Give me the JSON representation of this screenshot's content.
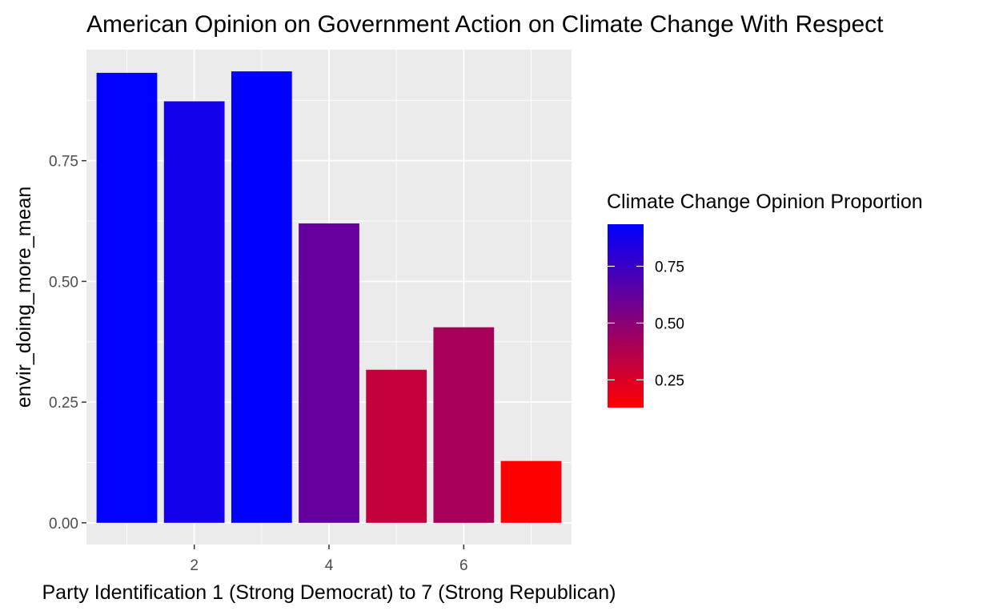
{
  "chart_data": {
    "type": "bar",
    "title": "American Opinion on Government Action on Climate Change With Respect",
    "xlabel": "Party Identification 1 (Strong Democrat) to 7 (Strong Republican)",
    "ylabel": "envir_doing_more_mean",
    "x": [
      1,
      2,
      3,
      4,
      5,
      6,
      7
    ],
    "values": [
      0.932,
      0.873,
      0.935,
      0.62,
      0.317,
      0.405,
      0.128
    ],
    "xlim": [
      0.4,
      7.6
    ],
    "ylim": [
      -0.045,
      0.98
    ],
    "x_ticks": [
      "2",
      "4",
      "6"
    ],
    "y_ticks": [
      "0.00",
      "0.25",
      "0.50",
      "0.75"
    ],
    "grid": true,
    "colors": {
      "low": "#ff0000",
      "high": "#0000ff",
      "panel": "#ebebeb",
      "grid": "#ffffff"
    },
    "legend": {
      "title": "Climate Change Opinion Proportion",
      "position": "right",
      "range": [
        0.128,
        0.935
      ],
      "ticks": [
        "0.25",
        "0.50",
        "0.75"
      ]
    }
  }
}
